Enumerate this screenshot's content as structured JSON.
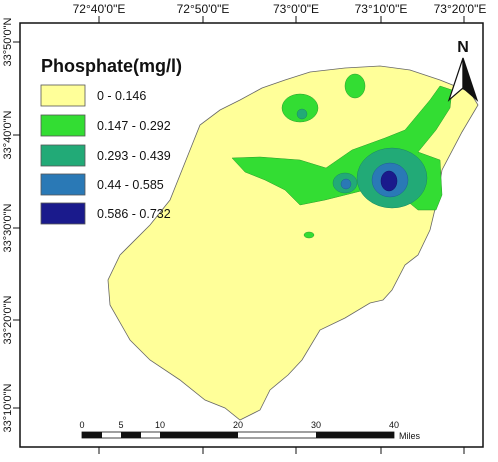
{
  "map": {
    "longitude_labels": [
      "72°40'0\"E",
      "72°50'0\"E",
      "73°0'0\"E",
      "73°10'0\"E",
      "73°20'0\"E"
    ],
    "latitude_labels": [
      "33°50'0\"N",
      "33°40'0\"N",
      "33°30'0\"N",
      "33°20'0\"N",
      "33°10'0\"N"
    ],
    "legend": {
      "title": "Phosphate(mg/l)",
      "classes": [
        {
          "label": "0 - 0.146",
          "color": "#ffff99"
        },
        {
          "label": "0.147 - 0.292",
          "color": "#33dd33"
        },
        {
          "label": "0.293 - 0.439",
          "color": "#22aa77"
        },
        {
          "label": "0.44 - 0.585",
          "color": "#2a79b6"
        },
        {
          "label": "0.586 - 0.732",
          "color": "#1a1a8c"
        }
      ]
    },
    "north_arrow": {
      "label": "N",
      "icon": "north-arrow-icon"
    },
    "scale_bar": {
      "ticks": [
        "0",
        "5",
        "10",
        "20",
        "30",
        "40"
      ],
      "unit": "Miles"
    }
  }
}
